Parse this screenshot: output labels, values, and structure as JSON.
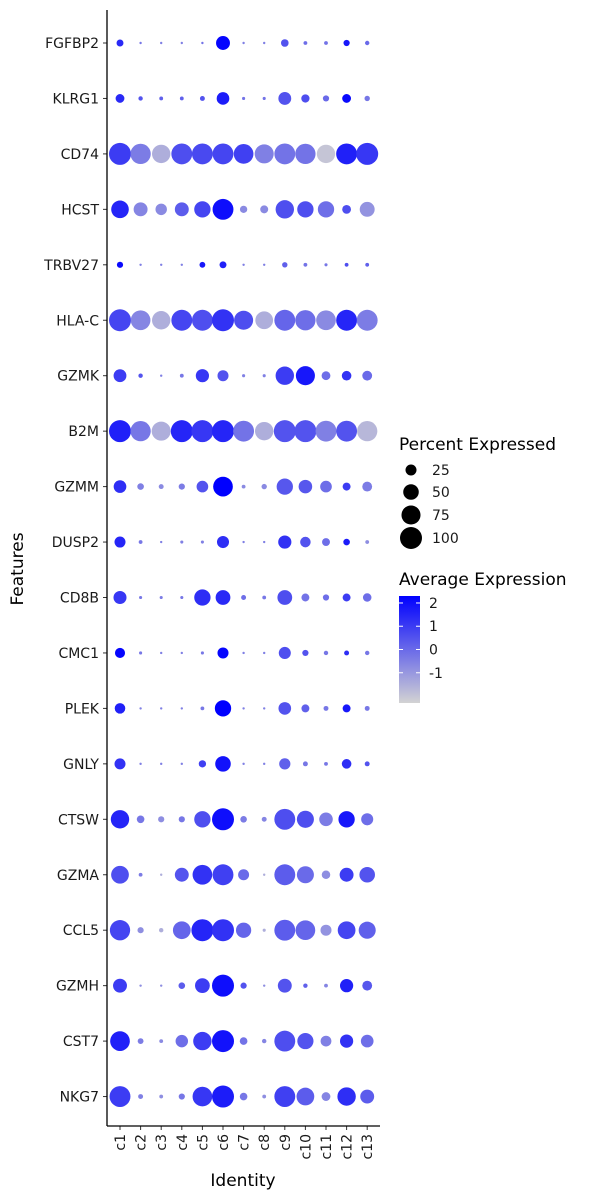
{
  "chart_data": {
    "type": "dotplot",
    "title": "",
    "xlabel": "Identity",
    "ylabel": "Features",
    "categories": [
      "c1",
      "c2",
      "c3",
      "c4",
      "c5",
      "c6",
      "c7",
      "c8",
      "c9",
      "c10",
      "c11",
      "c12",
      "c13"
    ],
    "features": [
      "FGFBP2",
      "KLRG1",
      "CD74",
      "HCST",
      "TRBV27",
      "HLA-C",
      "GZMK",
      "B2M",
      "GZMM",
      "DUSP2",
      "CD8B",
      "CMC1",
      "PLEK",
      "GNLY",
      "CTSW",
      "GZMA",
      "CCL5",
      "GZMH",
      "CST7",
      "NKG7"
    ],
    "percent_expressed": [
      [
        10,
        1,
        1,
        1,
        1,
        40,
        1,
        1,
        12,
        3,
        3,
        8,
        4
      ],
      [
        16,
        4,
        3,
        3,
        5,
        33,
        2,
        2,
        34,
        14,
        8,
        16,
        6
      ],
      [
        100,
        85,
        70,
        90,
        90,
        90,
        80,
        75,
        90,
        85,
        70,
        90,
        100
      ],
      [
        64,
        40,
        27,
        40,
        55,
        90,
        11,
        13,
        70,
        55,
        55,
        16,
        46
      ],
      [
        8,
        1,
        1,
        1,
        7,
        10,
        1,
        1,
        6,
        3,
        2,
        3,
        3
      ],
      [
        100,
        80,
        70,
        90,
        90,
        100,
        75,
        65,
        90,
        85,
        80,
        90,
        90
      ],
      [
        34,
        4,
        1,
        3,
        36,
        25,
        2,
        2,
        70,
        75,
        16,
        19,
        20
      ],
      [
        100,
        85,
        75,
        100,
        100,
        100,
        90,
        70,
        100,
        100,
        90,
        90,
        85
      ],
      [
        33,
        9,
        5,
        8,
        28,
        80,
        3,
        6,
        55,
        38,
        28,
        13,
        20
      ],
      [
        25,
        3,
        1,
        2,
        2,
        30,
        1,
        1,
        36,
        23,
        13,
        9,
        3
      ],
      [
        35,
        2,
        2,
        2,
        55,
        45,
        5,
        3,
        45,
        13,
        8,
        13,
        15
      ],
      [
        21,
        2,
        1,
        1,
        2,
        25,
        1,
        1,
        30,
        8,
        4,
        5,
        4
      ],
      [
        23,
        1,
        1,
        1,
        3,
        55,
        1,
        1,
        33,
        13,
        5,
        13,
        5
      ],
      [
        25,
        1,
        1,
        1,
        11,
        50,
        1,
        1,
        26,
        5,
        3,
        19,
        5
      ],
      [
        70,
        12,
        8,
        8,
        55,
        100,
        9,
        5,
        90,
        60,
        38,
        55,
        30
      ],
      [
        65,
        3,
        1,
        40,
        80,
        90,
        25,
        1,
        90,
        60,
        15,
        40,
        50
      ],
      [
        85,
        8,
        4,
        65,
        100,
        100,
        48,
        2,
        90,
        80,
        25,
        65,
        60
      ],
      [
        40,
        1,
        1,
        9,
        45,
        100,
        8,
        1,
        40,
        4,
        3,
        36,
        20
      ],
      [
        80,
        7,
        3,
        32,
        70,
        100,
        12,
        4,
        90,
        54,
        24,
        36,
        33
      ],
      [
        90,
        5,
        3,
        8,
        80,
        100,
        12,
        3,
        90,
        65,
        16,
        70,
        40
      ]
    ],
    "average_expression": [
      [
        1.4,
        -0.3,
        -0.5,
        -0.5,
        -0.2,
        2.2,
        -0.5,
        -0.5,
        0.5,
        -0.1,
        -0.2,
        1.8,
        0.0
      ],
      [
        1.4,
        0.5,
        0.2,
        0.2,
        0.5,
        1.7,
        -0.2,
        -0.2,
        0.5,
        0.6,
        0.0,
        2.1,
        -0.3
      ],
      [
        1.0,
        -0.4,
        -1.5,
        0.6,
        0.7,
        0.8,
        0.9,
        -0.5,
        -0.2,
        -0.2,
        -2.0,
        1.6,
        1.1
      ],
      [
        1.5,
        -0.6,
        -0.7,
        0.3,
        0.8,
        2.0,
        -0.7,
        -0.7,
        0.6,
        0.6,
        -0.1,
        0.6,
        -0.9
      ],
      [
        2.1,
        -0.5,
        -0.5,
        -0.5,
        1.8,
        1.6,
        -0.5,
        -0.5,
        0.2,
        -0.2,
        -0.3,
        0.6,
        0.2
      ],
      [
        0.8,
        -0.6,
        -1.5,
        0.8,
        0.6,
        1.2,
        0.6,
        -1.5,
        0.1,
        -0.1,
        -0.7,
        1.5,
        -0.4
      ],
      [
        1.0,
        0.5,
        -0.5,
        -0.3,
        1.1,
        0.5,
        -0.5,
        -0.5,
        1.0,
        1.8,
        -0.1,
        1.2,
        0.0
      ],
      [
        1.6,
        -0.3,
        -1.5,
        1.5,
        1.1,
        1.5,
        -0.2,
        -1.5,
        0.5,
        0.5,
        -0.5,
        0.5,
        -1.7
      ],
      [
        1.3,
        -0.5,
        -0.7,
        -0.4,
        0.5,
        2.3,
        -0.7,
        -0.7,
        0.4,
        0.4,
        -0.1,
        1.0,
        -0.4
      ],
      [
        1.5,
        -0.3,
        -0.5,
        -0.5,
        -0.5,
        1.3,
        -0.5,
        -0.5,
        1.2,
        0.5,
        -0.1,
        1.7,
        -0.8
      ],
      [
        1.1,
        -0.3,
        -0.4,
        -0.3,
        1.3,
        1.4,
        -0.1,
        -0.3,
        0.6,
        -0.2,
        -0.1,
        1.0,
        -0.1
      ],
      [
        2.2,
        -0.3,
        -0.5,
        -0.5,
        -0.3,
        2.2,
        -0.5,
        -0.5,
        0.6,
        0.5,
        -0.3,
        1.3,
        -0.3
      ],
      [
        1.6,
        -0.5,
        -0.5,
        -0.5,
        -0.3,
        2.3,
        -0.5,
        -0.5,
        0.5,
        0.2,
        -0.3,
        1.8,
        -0.3
      ],
      [
        1.2,
        -0.5,
        -0.5,
        -0.5,
        0.9,
        1.9,
        -0.5,
        -0.5,
        0.2,
        -0.3,
        -0.3,
        1.3,
        0.5
      ],
      [
        1.5,
        -0.3,
        -0.8,
        -0.3,
        0.6,
        2.0,
        -0.4,
        -0.6,
        0.6,
        0.6,
        -0.4,
        1.8,
        -0.1
      ],
      [
        0.6,
        -0.4,
        -1.5,
        0.5,
        1.2,
        0.9,
        0.0,
        -1.5,
        0.3,
        0.0,
        -0.8,
        1.0,
        0.5
      ],
      [
        0.8,
        -0.8,
        -1.5,
        0.1,
        1.5,
        1.2,
        0.1,
        -1.5,
        0.3,
        0.1,
        -0.9,
        0.8,
        0.2
      ],
      [
        1.0,
        -0.8,
        -0.8,
        0.3,
        1.0,
        2.0,
        0.5,
        -0.8,
        0.5,
        0.2,
        -0.6,
        1.6,
        0.4
      ],
      [
        1.6,
        -0.4,
        -0.7,
        -0.1,
        1.0,
        1.9,
        -0.2,
        -0.6,
        0.6,
        0.5,
        -0.5,
        1.2,
        -0.1
      ],
      [
        1.0,
        -0.5,
        -0.8,
        -0.3,
        1.1,
        1.7,
        -0.3,
        -0.8,
        0.9,
        0.3,
        -0.6,
        1.3,
        0.3
      ]
    ],
    "size_legend": {
      "title": "Percent Expressed",
      "values": [
        25,
        50,
        75,
        100
      ],
      "labels": [
        "25",
        "50",
        "75",
        "100"
      ]
    },
    "color_legend": {
      "title": "Average Expression",
      "range": [
        -2.3,
        2.3
      ],
      "ticks": [
        2,
        1,
        0,
        -1
      ],
      "labels": [
        "2",
        "1",
        "0",
        "-1"
      ],
      "low_color": "#d3d3d3",
      "high_color": "#0000ff"
    },
    "grid": false
  }
}
